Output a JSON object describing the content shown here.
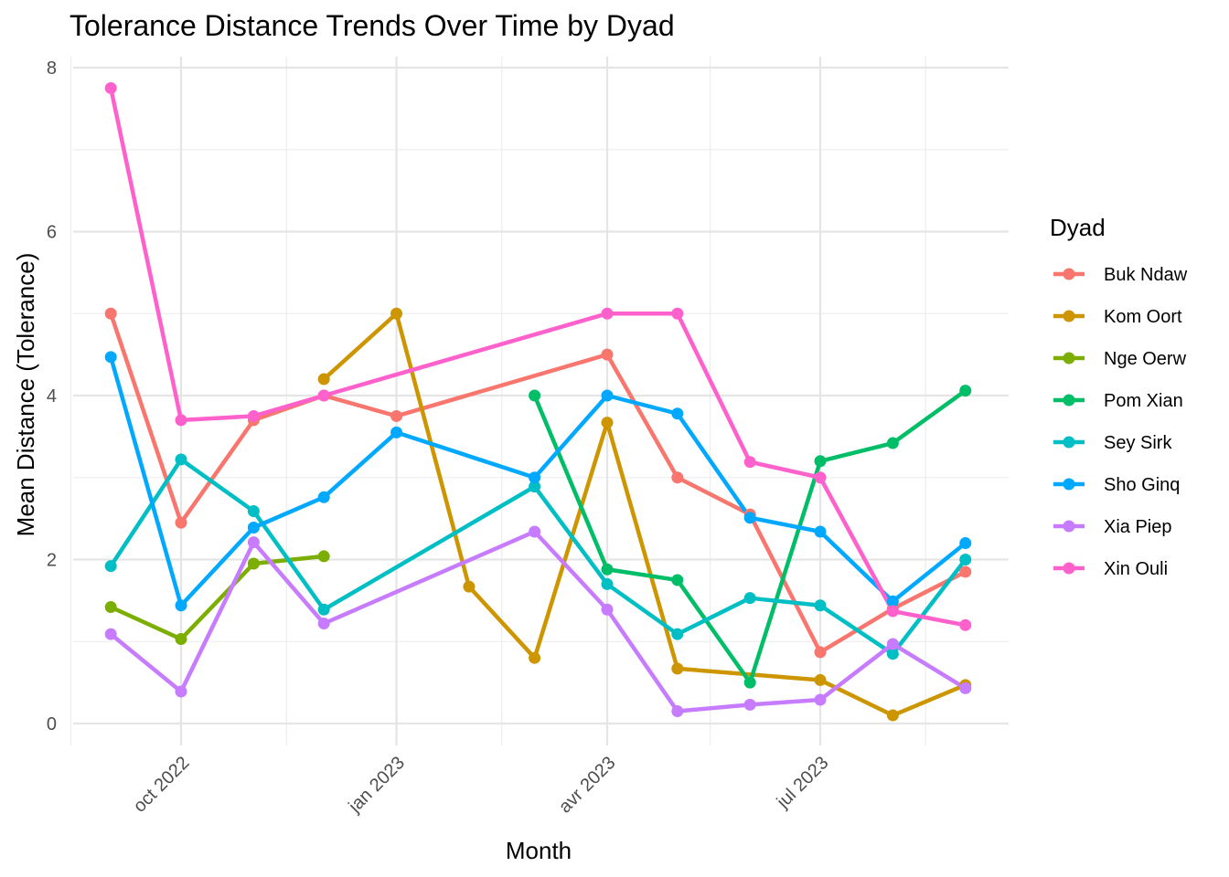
{
  "chart_data": {
    "type": "line",
    "title": "Tolerance Distance Trends Over Time by Dyad",
    "xlabel": "Month",
    "ylabel": "Mean Distance (Tolerance)",
    "ylim": [
      0,
      8
    ],
    "yticks": [
      0,
      2,
      4,
      6,
      8
    ],
    "xlim": [
      "2022-08-01",
      "2023-10-01"
    ],
    "xticks": [
      {
        "date": "2022-10-01",
        "label": "oct 2022"
      },
      {
        "date": "2023-01-01",
        "label": "jan 2023"
      },
      {
        "date": "2023-04-01",
        "label": "avr 2023"
      },
      {
        "date": "2023-07-01",
        "label": "jul 2023"
      }
    ],
    "x_minor_ticks": [
      "2022-08-15",
      "2022-11-15",
      "2023-02-15",
      "2023-05-15",
      "2023-08-15"
    ],
    "grid": true,
    "legend": {
      "title": "Dyad",
      "position": "right"
    },
    "series": [
      {
        "name": "Buk Ndaw",
        "color": "#F8766D",
        "points": [
          [
            "2022-09-01",
            5.0
          ],
          [
            "2022-10-01",
            2.45
          ],
          [
            "2022-11-01",
            3.7
          ],
          [
            "2022-12-01",
            4.0
          ],
          [
            "2023-01-01",
            3.75
          ],
          [
            "2023-04-01",
            4.5
          ],
          [
            "2023-05-01",
            3.0
          ],
          [
            "2023-06-01",
            2.55
          ],
          [
            "2023-07-01",
            0.87
          ],
          [
            "2023-08-01",
            1.4
          ],
          [
            "2023-09-01",
            1.85
          ]
        ]
      },
      {
        "name": "Kom Oort",
        "color": "#CD9600",
        "points": [
          [
            "2022-12-01",
            4.2
          ],
          [
            "2023-01-01",
            5.0
          ],
          [
            "2023-02-01",
            1.67
          ],
          [
            "2023-03-01",
            0.8
          ],
          [
            "2023-04-01",
            3.67
          ],
          [
            "2023-05-01",
            0.67
          ],
          [
            "2023-07-01",
            0.53
          ],
          [
            "2023-08-01",
            0.1
          ],
          [
            "2023-09-01",
            0.47
          ]
        ]
      },
      {
        "name": "Nge Oerw",
        "color": "#7CAE00",
        "points": [
          [
            "2022-09-01",
            1.42
          ],
          [
            "2022-10-01",
            1.03
          ],
          [
            "2022-11-01",
            1.95
          ],
          [
            "2022-12-01",
            2.04
          ]
        ]
      },
      {
        "name": "Pom Xian",
        "color": "#00BE67",
        "points": [
          [
            "2023-03-01",
            4.0
          ],
          [
            "2023-04-01",
            1.88
          ],
          [
            "2023-05-01",
            1.75
          ],
          [
            "2023-06-01",
            0.5
          ],
          [
            "2023-07-01",
            3.2
          ],
          [
            "2023-08-01",
            3.42
          ],
          [
            "2023-09-01",
            4.06
          ]
        ]
      },
      {
        "name": "Sey Sirk",
        "color": "#00BFC4",
        "points": [
          [
            "2022-09-01",
            1.92
          ],
          [
            "2022-10-01",
            3.22
          ],
          [
            "2022-11-01",
            2.59
          ],
          [
            "2022-12-01",
            1.39
          ],
          [
            "2023-03-01",
            2.89
          ],
          [
            "2023-04-01",
            1.7
          ],
          [
            "2023-05-01",
            1.09
          ],
          [
            "2023-06-01",
            1.53
          ],
          [
            "2023-07-01",
            1.44
          ],
          [
            "2023-08-01",
            0.85
          ],
          [
            "2023-09-01",
            2.0
          ]
        ]
      },
      {
        "name": "Sho Ginq",
        "color": "#00A9FF",
        "points": [
          [
            "2022-09-01",
            4.47
          ],
          [
            "2022-10-01",
            1.44
          ],
          [
            "2022-11-01",
            2.39
          ],
          [
            "2022-12-01",
            2.76
          ],
          [
            "2023-01-01",
            3.55
          ],
          [
            "2023-03-01",
            3.0
          ],
          [
            "2023-04-01",
            4.0
          ],
          [
            "2023-05-01",
            3.78
          ],
          [
            "2023-06-01",
            2.51
          ],
          [
            "2023-07-01",
            2.34
          ],
          [
            "2023-08-01",
            1.49
          ],
          [
            "2023-09-01",
            2.2
          ]
        ]
      },
      {
        "name": "Xia Piep",
        "color": "#C77CFF",
        "points": [
          [
            "2022-09-01",
            1.09
          ],
          [
            "2022-10-01",
            0.39
          ],
          [
            "2022-11-01",
            2.21
          ],
          [
            "2022-12-01",
            1.22
          ],
          [
            "2023-03-01",
            2.34
          ],
          [
            "2023-04-01",
            1.39
          ],
          [
            "2023-05-01",
            0.15
          ],
          [
            "2023-06-01",
            0.23
          ],
          [
            "2023-07-01",
            0.29
          ],
          [
            "2023-08-01",
            0.97
          ],
          [
            "2023-09-01",
            0.43
          ]
        ]
      },
      {
        "name": "Xin Ouli",
        "color": "#FF61CC",
        "points": [
          [
            "2022-09-01",
            7.75
          ],
          [
            "2022-10-01",
            3.7
          ],
          [
            "2022-11-01",
            3.75
          ],
          [
            "2022-12-01",
            4.0
          ],
          [
            "2023-04-01",
            5.0
          ],
          [
            "2023-05-01",
            5.0
          ],
          [
            "2023-06-01",
            3.19
          ],
          [
            "2023-07-01",
            3.0
          ],
          [
            "2023-08-01",
            1.37
          ],
          [
            "2023-09-01",
            1.2
          ]
        ]
      }
    ]
  }
}
